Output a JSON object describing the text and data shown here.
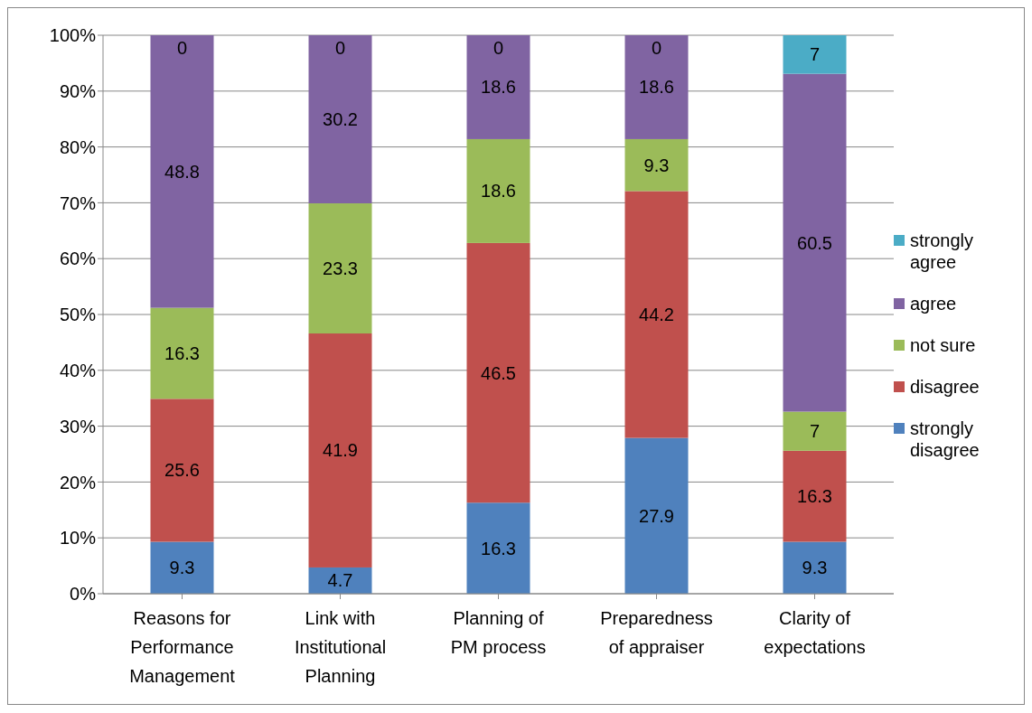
{
  "chart_data": {
    "type": "bar",
    "stacked": true,
    "categories": [
      "Reasons for Performance Management",
      "Link with Institutional Planning",
      "Planning of PM process",
      "Preparedness of appraiser",
      "Clarity of expectations"
    ],
    "series": [
      {
        "name": "strongly disagree",
        "color": "#4f81bd",
        "values": [
          9.3,
          4.7,
          16.3,
          27.9,
          9.3
        ]
      },
      {
        "name": "disagree",
        "color": "#c0504d",
        "values": [
          25.6,
          41.9,
          46.5,
          44.2,
          16.3
        ]
      },
      {
        "name": "not sure",
        "color": "#9bbb59",
        "values": [
          16.3,
          23.3,
          18.6,
          9.3,
          7
        ]
      },
      {
        "name": "agree",
        "color": "#8064a2",
        "values": [
          48.8,
          30.2,
          18.6,
          18.6,
          60.5
        ]
      },
      {
        "name": "strongly agree",
        "color": "#4bacc6",
        "values": [
          0,
          0,
          0,
          0,
          7
        ]
      }
    ],
    "ylim": [
      0,
      100
    ],
    "yticks": [
      {
        "value": 0,
        "label": "0%"
      },
      {
        "value": 10,
        "label": "10%"
      },
      {
        "value": 20,
        "label": "20%"
      },
      {
        "value": 30,
        "label": "30%"
      },
      {
        "value": 40,
        "label": "40%"
      },
      {
        "value": 50,
        "label": "50%"
      },
      {
        "value": 60,
        "label": "60%"
      },
      {
        "value": 70,
        "label": "70%"
      },
      {
        "value": 80,
        "label": "80%"
      },
      {
        "value": 90,
        "label": "90%"
      },
      {
        "value": 100,
        "label": "100%"
      }
    ],
    "grid": "y",
    "legend": "right",
    "data_labels": true
  }
}
